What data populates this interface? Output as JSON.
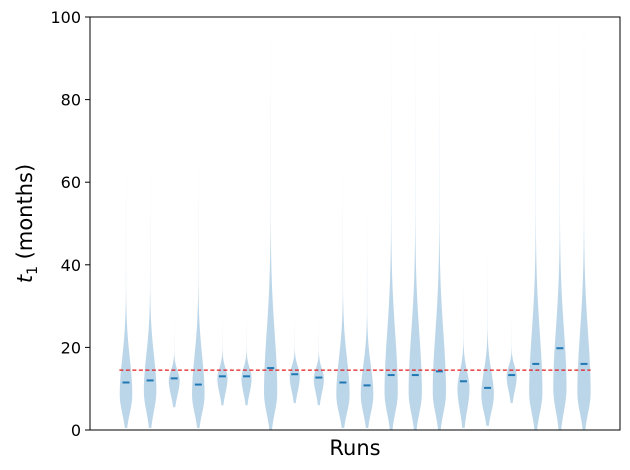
{
  "chart_data": {
    "type": "violin",
    "title": "",
    "xlabel": "Runs",
    "ylabel_var": "t",
    "ylabel_sub": "1",
    "ylabel_unit": " (months)",
    "ylim": [
      0,
      100
    ],
    "yticks": [
      "0",
      "20",
      "40",
      "60",
      "80",
      "100"
    ],
    "ytick_values": [
      0,
      20,
      40,
      60,
      80,
      100
    ],
    "grid": false,
    "violin_color": "#b8d4e8",
    "median_color": "#1f77b4",
    "reference_line": {
      "value": 14.5,
      "color": "#e41a1c",
      "style": "dashed"
    },
    "series": [
      {
        "median": 11.5,
        "min": 0.5,
        "max": 64,
        "mode": 8.5,
        "width": 0.52
      },
      {
        "median": 12.0,
        "min": 0.5,
        "max": 64,
        "mode": 9.5,
        "width": 0.52
      },
      {
        "median": 12.5,
        "min": 5.5,
        "max": 27,
        "mode": 12,
        "width": 0.45
      },
      {
        "median": 11.0,
        "min": 0.5,
        "max": 68,
        "mode": 8.5,
        "width": 0.52
      },
      {
        "median": 13.0,
        "min": 6.0,
        "max": 28,
        "mode": 12.5,
        "width": 0.42
      },
      {
        "median": 13.0,
        "min": 6.0,
        "max": 28,
        "mode": 12.5,
        "width": 0.42
      },
      {
        "median": 15.0,
        "min": 0.0,
        "max": 100,
        "mode": 9,
        "width": 0.55
      },
      {
        "median": 13.5,
        "min": 6.5,
        "max": 28,
        "mode": 13,
        "width": 0.42
      },
      {
        "median": 12.7,
        "min": 6.0,
        "max": 27,
        "mode": 12.5,
        "width": 0.42
      },
      {
        "median": 11.5,
        "min": 0.5,
        "max": 64,
        "mode": 8.5,
        "width": 0.55
      },
      {
        "median": 10.8,
        "min": 0.5,
        "max": 53,
        "mode": 8.5,
        "width": 0.52
      },
      {
        "median": 13.3,
        "min": 0.0,
        "max": 100,
        "mode": 9,
        "width": 0.55
      },
      {
        "median": 13.3,
        "min": 0.0,
        "max": 100,
        "mode": 9,
        "width": 0.55
      },
      {
        "median": 14.2,
        "min": 0.0,
        "max": 100,
        "mode": 9,
        "width": 0.55
      },
      {
        "median": 11.8,
        "min": 0.5,
        "max": 36,
        "mode": 10,
        "width": 0.5
      },
      {
        "median": 10.2,
        "min": 1.0,
        "max": 44,
        "mode": 8.5,
        "width": 0.52
      },
      {
        "median": 13.3,
        "min": 6.5,
        "max": 28,
        "mode": 13,
        "width": 0.42
      },
      {
        "median": 16.0,
        "min": 0.0,
        "max": 100,
        "mode": 9,
        "width": 0.55
      },
      {
        "median": 19.8,
        "min": 0.0,
        "max": 100,
        "mode": 10,
        "width": 0.55
      },
      {
        "median": 16.0,
        "min": 0.0,
        "max": 100,
        "mode": 9,
        "width": 0.55
      }
    ]
  }
}
